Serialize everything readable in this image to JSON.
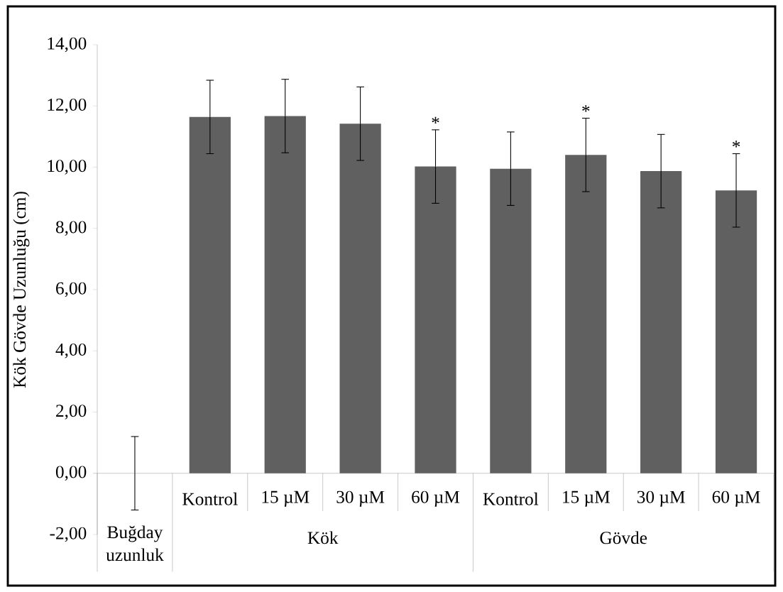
{
  "chart_data": {
    "type": "bar",
    "ylabel": "Kök Gövde Uzunluğu (cm)",
    "categories": [
      "Buğday uzunluk",
      "Kontrol",
      "15 µM",
      "30 µM",
      "60 µM",
      "Kontrol",
      "15 µM",
      "30 µM",
      "60 µM"
    ],
    "values": [
      0,
      11.64,
      11.67,
      11.42,
      10.02,
      9.95,
      10.4,
      9.87,
      9.24
    ],
    "errors": [
      1.2,
      1.2,
      1.2,
      1.2,
      1.2,
      1.2,
      1.2,
      1.2,
      1.2
    ],
    "value_labels": [
      null,
      null,
      null,
      null,
      "*",
      null,
      "*",
      null,
      "*"
    ],
    "color": "#606060",
    "ylim": [
      -2,
      14
    ],
    "yticks": [
      {
        "value": -2,
        "label": "-2,00"
      },
      {
        "value": 0,
        "label": "0,00"
      },
      {
        "value": 2,
        "label": "2,00"
      },
      {
        "value": 4,
        "label": "4,00"
      },
      {
        "value": 6,
        "label": "6,00"
      },
      {
        "value": 8,
        "label": "8,00"
      },
      {
        "value": 10,
        "label": "10,00"
      },
      {
        "value": 12,
        "label": "12,00"
      },
      {
        "value": 14,
        "label": "14,00"
      }
    ],
    "annotations": [
      "Kök",
      "Gövde"
    ]
  }
}
